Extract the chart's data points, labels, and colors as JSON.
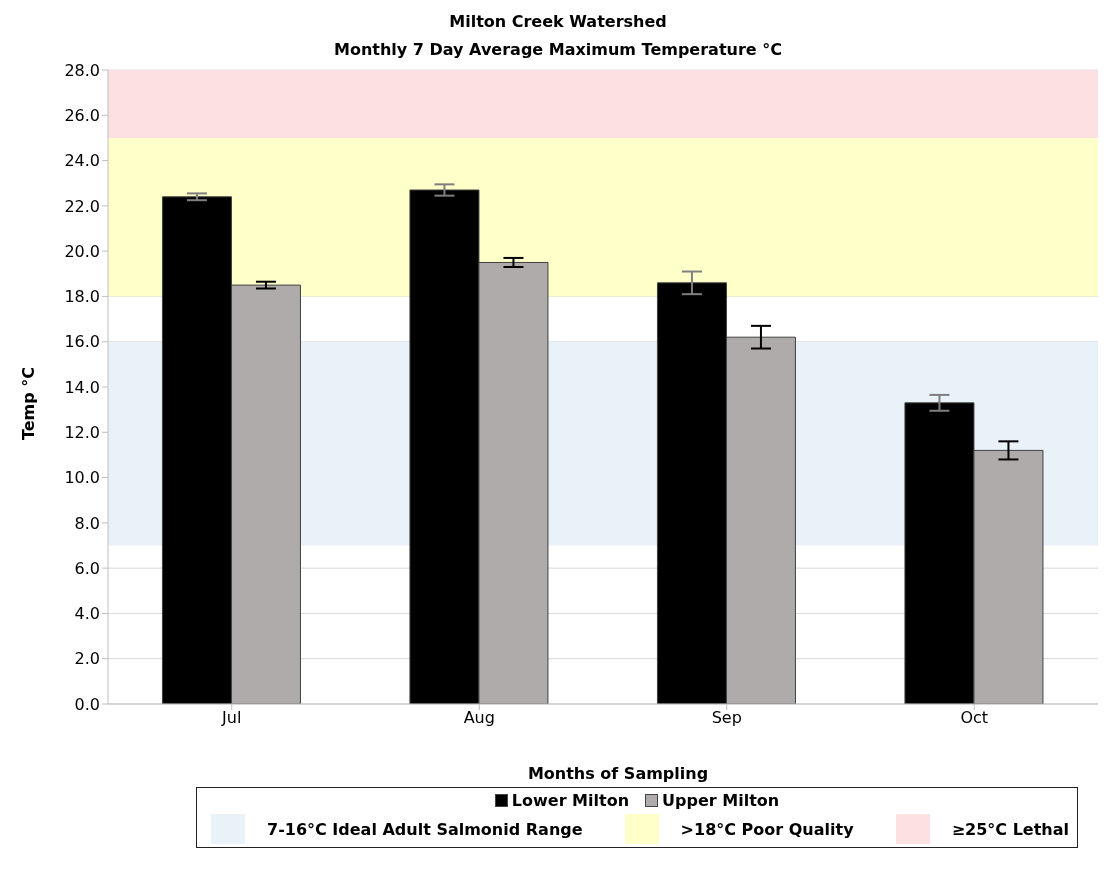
{
  "chart_data": {
    "type": "bar",
    "title": "Milton Creek Watershed",
    "subtitle": "Monthly 7 Day Average Maximum Temperature °C",
    "xlabel": "Months of Sampling",
    "ylabel": "Temp °C",
    "categories": [
      "Jul",
      "Aug",
      "Sep",
      "Oct"
    ],
    "series": [
      {
        "name": "Lower Milton",
        "color": "#000000",
        "values": [
          22.4,
          22.7,
          18.6,
          13.3
        ],
        "errors": [
          0.15,
          0.25,
          0.5,
          0.35
        ]
      },
      {
        "name": "Upper Milton",
        "color": "#afabab",
        "values": [
          18.5,
          19.5,
          16.2,
          11.2
        ],
        "errors": [
          0.15,
          0.2,
          0.5,
          0.4
        ]
      }
    ],
    "ylim": [
      0,
      28
    ],
    "yticks": [
      {
        "value": 0,
        "label": "0.0"
      },
      {
        "value": 2,
        "label": "2.0"
      },
      {
        "value": 4,
        "label": "4.0"
      },
      {
        "value": 6,
        "label": "6.0"
      },
      {
        "value": 8,
        "label": "8.0"
      },
      {
        "value": 10,
        "label": "10.0"
      },
      {
        "value": 12,
        "label": "12.0"
      },
      {
        "value": 14,
        "label": "14.0"
      },
      {
        "value": 16,
        "label": "16.0"
      },
      {
        "value": 18,
        "label": "18.0"
      },
      {
        "value": 20,
        "label": "20.0"
      },
      {
        "value": 22,
        "label": "22.0"
      },
      {
        "value": 24,
        "label": "24.0"
      },
      {
        "value": 26,
        "label": "26.0"
      },
      {
        "value": 28,
        "label": "28.0"
      }
    ],
    "bands": [
      {
        "axis": "y",
        "from": 7,
        "to": 16,
        "label": "7-16°C Ideal Adult Salmonid Range",
        "color": "#e9f1f9"
      },
      {
        "axis": "y",
        "from": 18,
        "to": 25,
        "label": ">18°C Poor Quality",
        "color": "#ffffc9"
      },
      {
        "axis": "y",
        "from": 25,
        "to": 28,
        "label": "≥25°C Lethal",
        "color": "#fde0e2"
      }
    ],
    "grid": "y",
    "legend": "bottom"
  }
}
